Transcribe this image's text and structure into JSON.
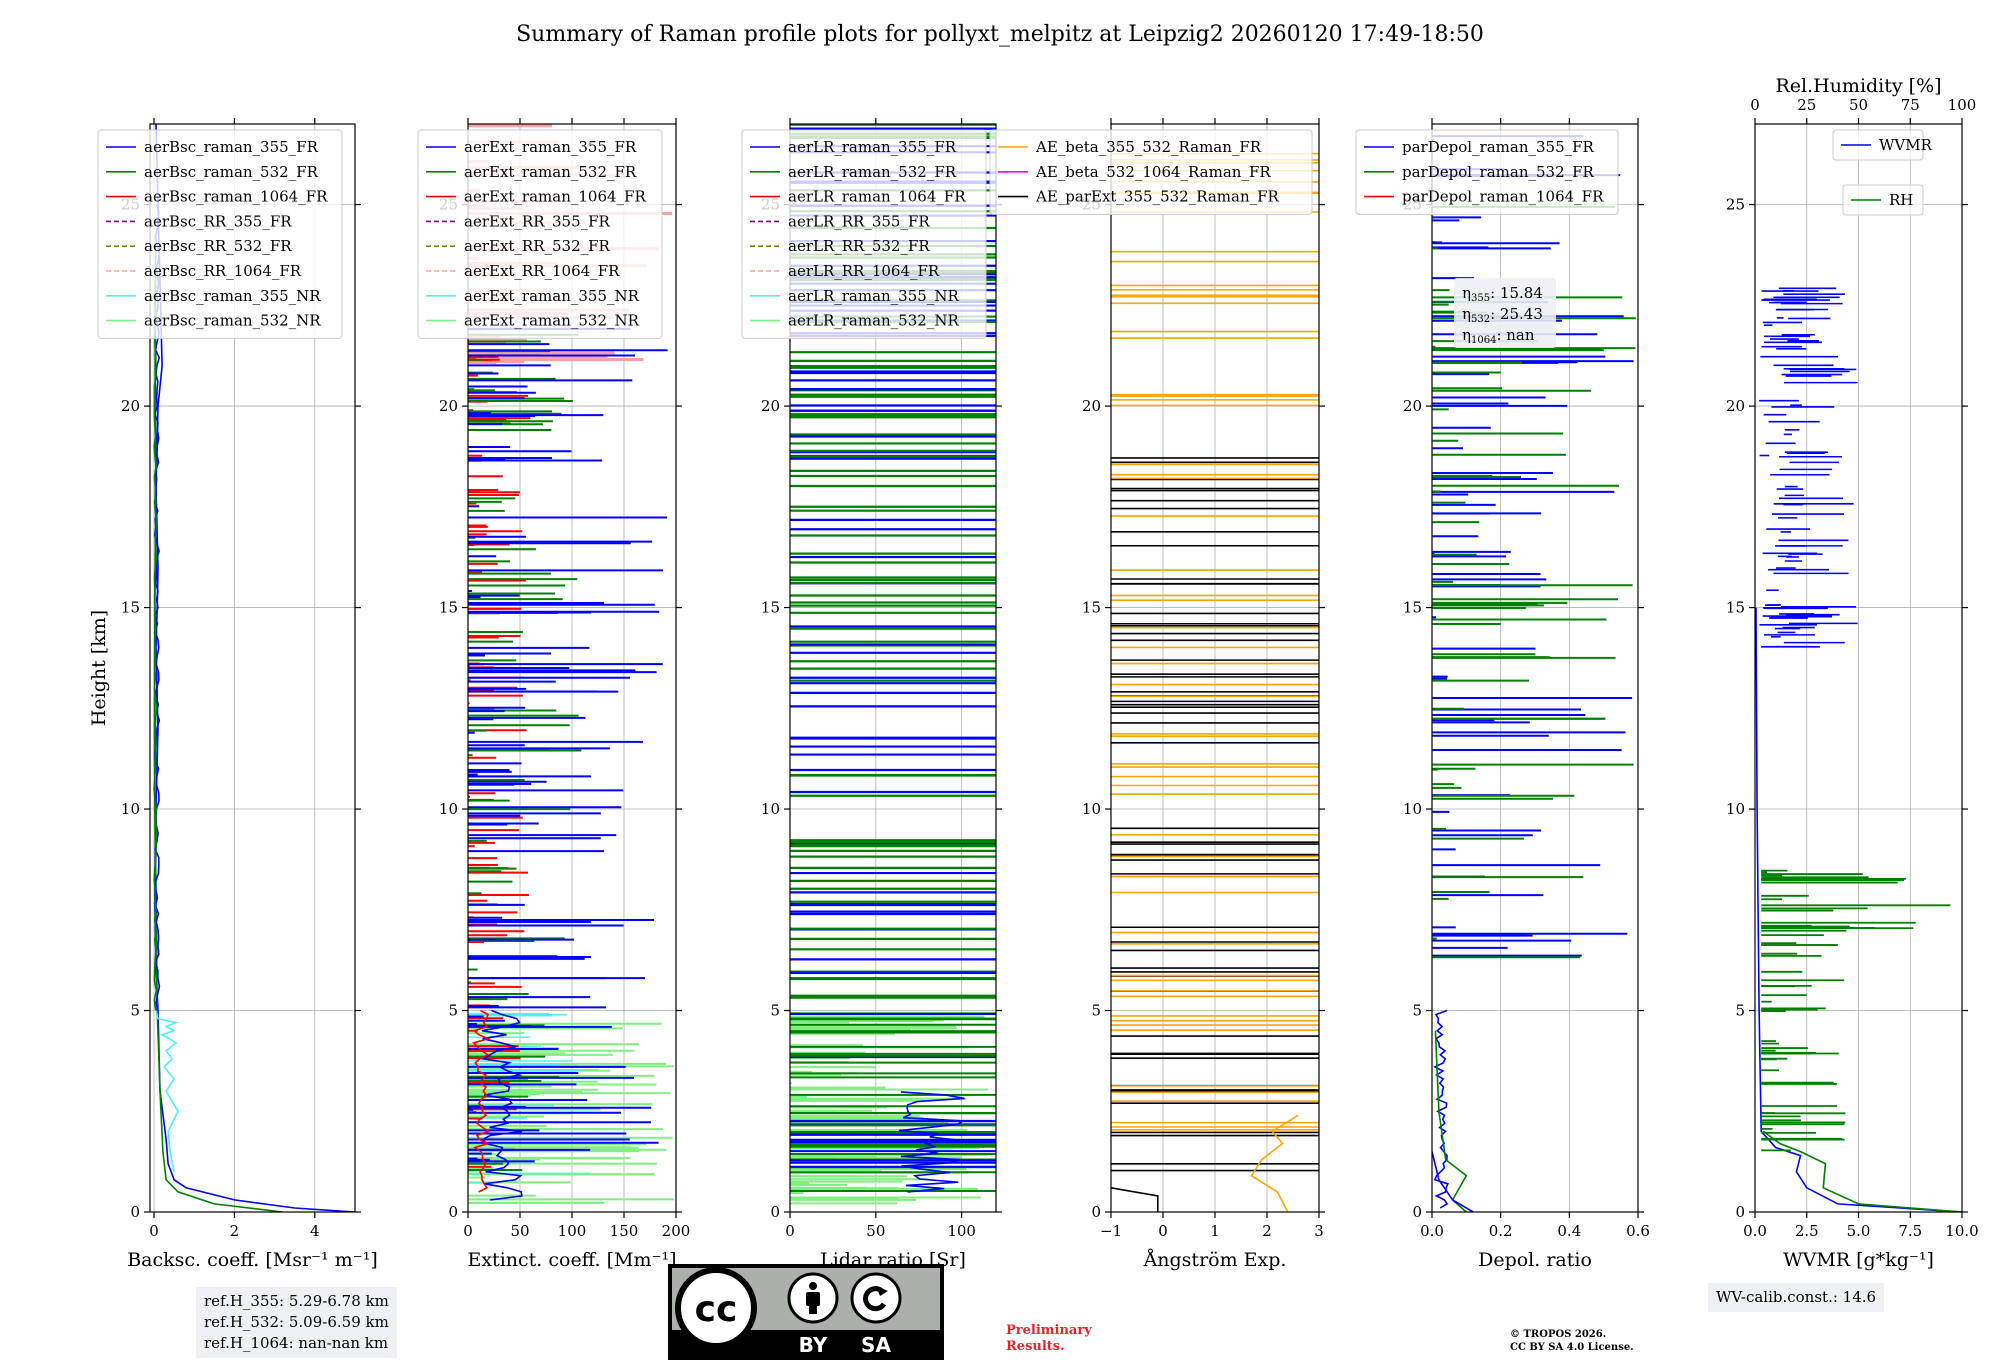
{
  "title": "Summary of Raman profile plots for pollyxt_melpitz at Leipzig2 20260120 17:49-18:50",
  "colors": {
    "blue": "#0000ff",
    "green": "#008000",
    "red": "#ff0000",
    "purple": "#800080",
    "olive": "#808000",
    "pink": "#ffa0a0",
    "cyan": "#50f0f0",
    "lightgreen": "#80f080",
    "orange": "#ffa500",
    "magenta": "#ff00ff",
    "black": "#000000"
  },
  "ref_heights": {
    "h355": "ref.H_355: 5.29-6.78 km",
    "h532": "ref.H_532: 5.09-6.59 km",
    "h1064": "ref.H_1064: nan-nan km"
  },
  "eta": {
    "e355": "15.84",
    "e532": "25.43",
    "e1064": "nan"
  },
  "wv_calib": "WV-calib.const.: 14.6",
  "preliminary": [
    "Preliminary",
    "Results."
  ],
  "copyright": [
    "© TROPOS 2026.",
    "CC BY SA 4.0 License."
  ],
  "license_badge": {
    "by": "BY",
    "sa": "SA",
    "cc": "cc"
  },
  "chart_data": [
    {
      "type": "line",
      "xlabel": "Backsc. coeff. [Msr⁻¹ m⁻¹]",
      "ylabel": "Height [km]",
      "xlim": [
        -0.1,
        5
      ],
      "xticks": [
        0,
        2,
        4
      ],
      "ylim": [
        0,
        27
      ],
      "yticks": [
        0,
        5,
        10,
        15,
        20,
        25
      ],
      "legend": [
        "aerBsc_raman_355_FR",
        "aerBsc_raman_532_FR",
        "aerBsc_raman_1064_FR",
        "aerBsc_RR_355_FR",
        "aerBsc_RR_532_FR",
        "aerBsc_RR_1064_FR",
        "aerBsc_raman_355_NR",
        "aerBsc_raman_532_NR"
      ],
      "series": [
        {
          "name": "aerBsc_raman_355_FR",
          "x": [
            5.0,
            3.5,
            2.0,
            0.8,
            0.5,
            0.35,
            0.3,
            0.15,
            0.1,
            0.05,
            0.02,
            0.05,
            0.1,
            0.05,
            0.08,
            0.1,
            0.05,
            0.1,
            0.2,
            0.05
          ],
          "y": [
            0,
            0.1,
            0.3,
            0.6,
            0.8,
            1.2,
            1.8,
            3,
            5,
            6,
            8,
            10,
            12,
            14,
            15,
            16,
            18,
            20,
            21,
            27
          ]
        },
        {
          "name": "aerBsc_raman_532_FR",
          "x": [
            3.2,
            1.5,
            0.6,
            0.3,
            0.22,
            0.15,
            0.08,
            0.05,
            0.02,
            0.01,
            0.02,
            0.05,
            0.03,
            0.04
          ],
          "y": [
            0,
            0.2,
            0.5,
            0.8,
            1.5,
            3,
            5,
            8,
            10,
            12,
            15,
            18,
            21,
            24
          ]
        },
        {
          "name": "aerBsc_raman_355_NR",
          "x": [
            0.5,
            0.4,
            0.35,
            0.6,
            0.3,
            0.5,
            0.25,
            0.45,
            0.3,
            0.55,
            0.2,
            0.5,
            0.3,
            0.55,
            0.1,
            0.05
          ],
          "y": [
            1.0,
            1.5,
            2.0,
            2.5,
            3.0,
            3.3,
            3.6,
            3.8,
            4.0,
            4.2,
            4.4,
            4.5,
            4.6,
            4.7,
            4.8,
            5.0
          ]
        }
      ]
    },
    {
      "type": "line",
      "xlabel": "Extinct. coeff. [Mm⁻¹]",
      "xlim": [
        0,
        200
      ],
      "xticks": [
        0,
        50,
        100,
        150,
        200
      ],
      "ylim": [
        0,
        27
      ],
      "yticks": [
        0,
        5,
        10,
        15,
        20,
        25
      ],
      "legend": [
        "aerExt_raman_355_FR",
        "aerExt_raman_532_FR",
        "aerExt_raman_1064_FR",
        "aerExt_RR_355_FR",
        "aerExt_RR_532_FR",
        "aerExt_RR_1064_FR",
        "aerExt_raman_355_NR",
        "aerExt_raman_532_NR"
      ]
    },
    {
      "type": "line",
      "xlabel": "Lidar ratio [Sr]",
      "xlim": [
        0,
        120
      ],
      "xticks": [
        0,
        50,
        100
      ],
      "ylim": [
        0,
        27
      ],
      "yticks": [
        0,
        5,
        10,
        15,
        20,
        25
      ],
      "legend": [
        "aerLR_raman_355_FR",
        "aerLR_raman_532_FR",
        "aerLR_raman_1064_FR",
        "aerLR_RR_355_FR",
        "aerLR_RR_532_FR",
        "aerLR_RR_1064_FR",
        "aerLR_raman_355_NR",
        "aerLR_raman_532_NR"
      ]
    },
    {
      "type": "line",
      "xlabel": "Ångström Exp.",
      "xlim": [
        -1,
        3
      ],
      "xticks": [
        -1,
        0,
        1,
        2,
        3
      ],
      "ylim": [
        0,
        27
      ],
      "yticks": [
        0,
        5,
        10,
        15,
        20,
        25
      ],
      "legend": [
        "AE_beta_355_532_Raman_FR",
        "AE_beta_532_1064_Raman_FR",
        "AE_parExt_355_532_Raman_FR"
      ]
    },
    {
      "type": "line",
      "xlabel": "Depol. ratio",
      "xlim": [
        0,
        0.6
      ],
      "xticks": [
        0.0,
        0.2,
        0.4,
        0.6
      ],
      "ylim": [
        0,
        27
      ],
      "yticks": [
        0,
        5,
        10,
        15,
        20,
        25
      ],
      "legend": [
        "parDepol_raman_355_FR",
        "parDepol_raman_532_FR",
        "parDepol_raman_1064_FR"
      ]
    },
    {
      "type": "line",
      "xlabel": "WVMR [g*kg⁻¹]",
      "x2label": "Rel.Humidity [%]",
      "xlim": [
        0,
        10
      ],
      "xticks": [
        0.0,
        2.5,
        5.0,
        7.5,
        10.0
      ],
      "x2lim": [
        0,
        100
      ],
      "x2ticks": [
        0,
        25,
        50,
        75,
        100
      ],
      "ylim": [
        0,
        27
      ],
      "yticks": [
        0,
        5,
        10,
        15,
        20,
        25
      ],
      "legend": [
        "WVMR",
        "RH"
      ]
    }
  ]
}
